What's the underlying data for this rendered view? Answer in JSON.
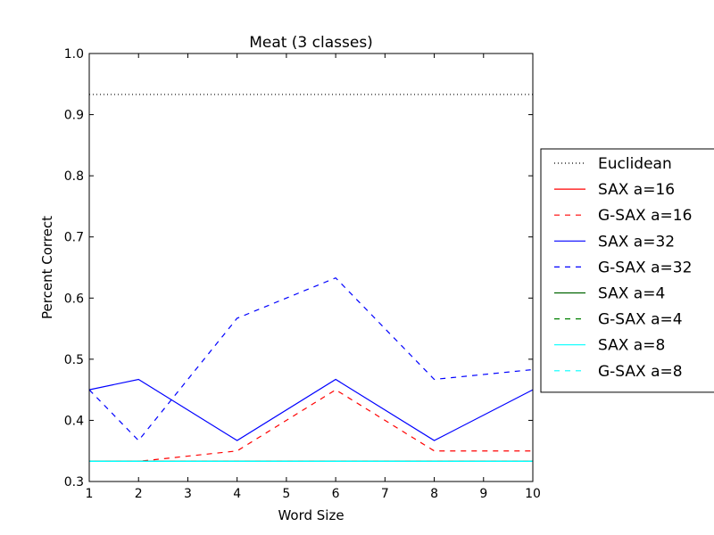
{
  "chart_data": {
    "type": "line",
    "title": "Meat (3 classes)",
    "xlabel": "Word Size",
    "ylabel": "Percent Correct",
    "xlim": [
      1,
      10
    ],
    "ylim": [
      0.3,
      1.0
    ],
    "x_ticks": [
      1,
      2,
      3,
      4,
      5,
      6,
      7,
      8,
      9,
      10
    ],
    "y_ticks": [
      0.3,
      0.4,
      0.5,
      0.6,
      0.7,
      0.8,
      0.9,
      1.0
    ],
    "grid": false,
    "legend_position": "outside-right",
    "x": [
      1,
      2,
      4,
      6,
      8,
      10
    ],
    "series": [
      {
        "name": "Euclidean",
        "color": "#000000",
        "style": "dotted",
        "values": [
          0.933,
          0.933,
          0.933,
          0.933,
          0.933,
          0.933
        ]
      },
      {
        "name": "SAX a=16",
        "color": "#ff0000",
        "style": "solid",
        "values": [
          0.333,
          0.333,
          0.333,
          0.333,
          0.333,
          0.333
        ]
      },
      {
        "name": "G-SAX a=16",
        "color": "#ff0000",
        "style": "dashed",
        "values": [
          0.333,
          0.333,
          0.35,
          0.45,
          0.35,
          0.35
        ]
      },
      {
        "name": "SAX a=32",
        "color": "#0000ff",
        "style": "solid",
        "values": [
          0.45,
          0.467,
          0.367,
          0.467,
          0.367,
          0.45
        ]
      },
      {
        "name": "G-SAX a=32",
        "color": "#0000ff",
        "style": "dashed",
        "values": [
          0.45,
          0.367,
          0.567,
          0.633,
          0.467,
          0.483
        ]
      },
      {
        "name": "SAX a=4",
        "color": "#006400",
        "style": "solid",
        "values": [
          0.333,
          0.333,
          0.333,
          0.333,
          0.333,
          0.333
        ]
      },
      {
        "name": "G-SAX a=4",
        "color": "#008000",
        "style": "dashed",
        "values": [
          0.333,
          0.333,
          0.333,
          0.333,
          0.333,
          0.333
        ]
      },
      {
        "name": "SAX a=8",
        "color": "#00ffff",
        "style": "solid",
        "values": [
          0.333,
          0.333,
          0.333,
          0.333,
          0.333,
          0.333
        ]
      },
      {
        "name": "G-SAX a=8",
        "color": "#00ffff",
        "style": "dashed",
        "values": [
          0.333,
          0.333,
          0.333,
          0.333,
          0.333,
          0.333
        ]
      }
    ]
  }
}
